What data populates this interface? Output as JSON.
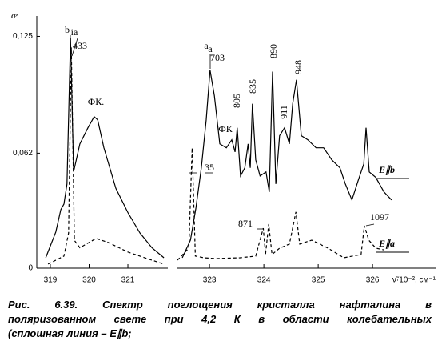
{
  "chart_data": [
    {
      "type": "line",
      "ylabel": "æ",
      "xlim": [
        318.65,
        322.03
      ],
      "ylim": [
        0,
        0.136
      ],
      "xticks": [
        319,
        320,
        321
      ],
      "yticks": [
        {
          "value": 0,
          "label": "0"
        },
        {
          "value": 0.062,
          "label": "0,062"
        },
        {
          "value": 0.125,
          "label": "0,125"
        }
      ],
      "series": [
        {
          "color": "#000000",
          "dash": false,
          "x": [
            318.88,
            319.14,
            319.27,
            319.35,
            319.43,
            319.52,
            319.6,
            319.76,
            319.97,
            320.13,
            320.22,
            320.38,
            320.69,
            321.0,
            321.31,
            321.62,
            321.93
          ],
          "values": [
            0.0056,
            0.0195,
            0.0316,
            0.0346,
            0.0454,
            0.124,
            0.052,
            0.067,
            0.0757,
            0.0817,
            0.08,
            0.065,
            0.043,
            0.03,
            0.019,
            0.011,
            0.0056
          ]
        },
        {
          "color": "#000000",
          "dash": true,
          "x": [
            318.94,
            319.35,
            319.47,
            319.54,
            319.62,
            319.76,
            320.18,
            320.48,
            321.0,
            321.62,
            321.93
          ],
          "values": [
            0.0022,
            0.0065,
            0.019,
            0.119,
            0.015,
            0.011,
            0.016,
            0.014,
            0.0087,
            0.0043,
            0.0022
          ]
        }
      ],
      "annotations": [
        "b",
        "ia",
        "433",
        "ФК."
      ]
    },
    {
      "type": "line",
      "xlabel": "ν̃·10⁻², см⁻¹",
      "xlim": [
        322.41,
        327.16
      ],
      "ylim": [
        0,
        0.136
      ],
      "xticks": [
        323,
        324,
        325,
        326
      ],
      "series": [
        {
          "name": "E∥b",
          "color": "#000000",
          "dash": false,
          "x": [
            322.5,
            322.65,
            322.75,
            322.85,
            322.94,
            323.01,
            323.09,
            323.19,
            323.31,
            323.41,
            323.47,
            323.51,
            323.57,
            323.65,
            323.71,
            323.75,
            323.79,
            323.85,
            323.93,
            324.04,
            324.1,
            324.16,
            324.22,
            324.29,
            324.38,
            324.47,
            324.53,
            324.6,
            324.69,
            324.81,
            324.96,
            325.1,
            325.25,
            325.4,
            325.5,
            325.62,
            325.74,
            325.84,
            325.88,
            325.94,
            326.06,
            326.21,
            326.35
          ],
          "values": [
            0.0056,
            0.0151,
            0.0324,
            0.0541,
            0.08,
            0.1068,
            0.093,
            0.067,
            0.0649,
            0.0692,
            0.0627,
            0.0757,
            0.0497,
            0.0541,
            0.067,
            0.0541,
            0.0887,
            0.0584,
            0.0497,
            0.0519,
            0.0411,
            0.106,
            0.0454,
            0.0714,
            0.0757,
            0.067,
            0.0887,
            0.1016,
            0.0714,
            0.0692,
            0.0649,
            0.0649,
            0.0584,
            0.0541,
            0.0454,
            0.0368,
            0.0476,
            0.0562,
            0.0757,
            0.0519,
            0.0489,
            0.0411,
            0.0368
          ]
        },
        {
          "name": "E∥a",
          "color": "#000000",
          "dash": true,
          "x": [
            322.41,
            322.62,
            322.68,
            322.74,
            322.9,
            323.12,
            323.56,
            323.85,
            323.99,
            324.03,
            324.09,
            324.15,
            324.29,
            324.47,
            324.59,
            324.66,
            324.88,
            325.18,
            325.47,
            325.79,
            325.85,
            325.93,
            326.06,
            326.21
          ],
          "values": [
            0.0043,
            0.0108,
            0.0649,
            0.0065,
            0.0056,
            0.0052,
            0.0056,
            0.0065,
            0.0216,
            0.0074,
            0.0238,
            0.0074,
            0.0108,
            0.013,
            0.0303,
            0.013,
            0.0151,
            0.0108,
            0.0056,
            0.0074,
            0.0229,
            0.0151,
            0.0108,
            0.0099
          ]
        }
      ],
      "annotations": [
        "a",
        "a",
        "703",
        "805",
        "835",
        "890",
        "911",
        "948",
        "ФК",
        "35",
        "871",
        "1097"
      ]
    }
  ],
  "caption": [
    "Рис. 6.39. Спектр поглощения кристалла нафталина в",
    "поляризованном свете при 4,2 К в области колебательных",
    "(сплошная линия – E∥b;"
  ]
}
